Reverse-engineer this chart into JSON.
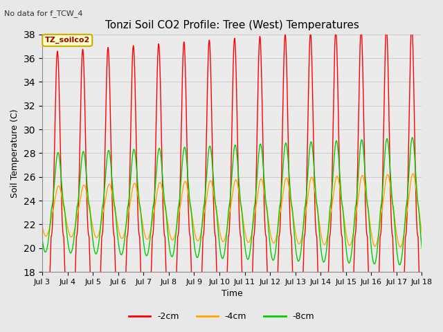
{
  "title": "Tonzi Soil CO2 Profile: Tree (West) Temperatures",
  "subtitle": "No data for f_TCW_4",
  "ylabel": "Soil Temperature (C)",
  "xlabel": "Time",
  "xlim_days": [
    3,
    18
  ],
  "ylim": [
    18,
    38
  ],
  "yticks": [
    18,
    20,
    22,
    24,
    26,
    28,
    30,
    32,
    34,
    36,
    38
  ],
  "xtick_labels": [
    "Jul 3",
    "Jul 4",
    "Jul 5",
    "Jul 6",
    "Jul 7",
    "Jul 8",
    "Jul 9",
    "Jul 10",
    "Jul 11",
    "Jul 12",
    "Jul 13",
    "Jul 14",
    "Jul 15",
    "Jul 16",
    "Jul 17",
    "Jul 18"
  ],
  "xtick_positions": [
    3,
    4,
    5,
    6,
    7,
    8,
    9,
    10,
    11,
    12,
    13,
    14,
    15,
    16,
    17,
    18
  ],
  "colors": {
    "-2cm": "#ff0000",
    "-4cm": "#ffa500",
    "-8cm": "#00cc00"
  },
  "grid_color": "#cccccc",
  "bg_color": "#e8e8e8",
  "plot_bg_color": "#ebebeb",
  "annotation_text": "TZ_soilco2",
  "annotation_box_color": "#ffffcc",
  "annotation_box_edge": "#cccc00"
}
